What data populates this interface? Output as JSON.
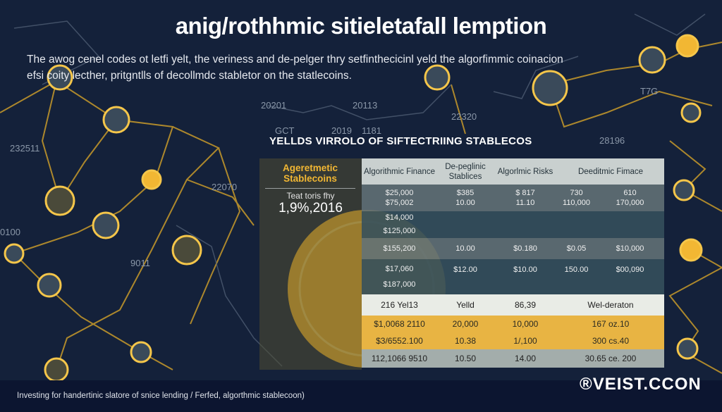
{
  "title": "anig/rothhmic sitieletafall lemption",
  "intro": [
    "The awog cenel codes ot letfi yelt, the veriness and de-pelger thry setfinthecicinl yeld the algorfimmic coinacion",
    "efsi coity lecther, pritgntlls of decollmdc stabletor on the statlecoins."
  ],
  "background_labels": [
    "20201",
    "20113",
    "GCT",
    "2019",
    "1181",
    "232511",
    "22320",
    "28196",
    "T7G",
    "22070",
    "0100",
    "9011"
  ],
  "table": {
    "title": "YELLDS VIRROLO OF SIFTECTRIING STABLECOS",
    "left_panel": {
      "heading": "Ageretmetic Stablecoins",
      "subtitle": "Teat toris fhy",
      "value": "1,9%,2016"
    },
    "headers": [
      "Algorithmic Finance",
      "De-peglinic Stablices",
      "Algorlmic Risks",
      "Deeditmic Fimace"
    ],
    "rows": [
      [
        "$25,000\n$75,002",
        "$385\n10.00",
        "$ 817\n11.10",
        "730\n110,000",
        "610\n170,000"
      ],
      [
        "$14,000\n$125,000",
        "",
        "",
        "",
        ""
      ],
      [
        "$155,200",
        "10.00",
        "$0.180",
        "$0.05",
        "$10,000"
      ],
      [
        "$17,060\n$187,000",
        "$12.00",
        "$10.00",
        "150.00",
        "$00,090"
      ]
    ],
    "summary_row": [
      "216 Yel13",
      "Yelld",
      "86,39",
      "Wel-deraton"
    ],
    "yellow_rows": [
      [
        "$1,0068 2110",
        "20,000",
        "10,000",
        "167 oz.10"
      ],
      [
        "$3/6552.100",
        "10.38",
        "1/,100",
        "300 cs.40"
      ]
    ],
    "bottom_row": [
      "112,1066 9510",
      "10.50",
      "14.00",
      "30.65 ce. 200"
    ]
  },
  "footer": {
    "text": "Investing for handertinic slatore of snice lending / Ferfed, algorthmic stablecoon)",
    "brand": "VEIST.CCON"
  },
  "colors": {
    "background": "#14213a",
    "gold": "#f2b733",
    "line": "#c89a2a"
  }
}
